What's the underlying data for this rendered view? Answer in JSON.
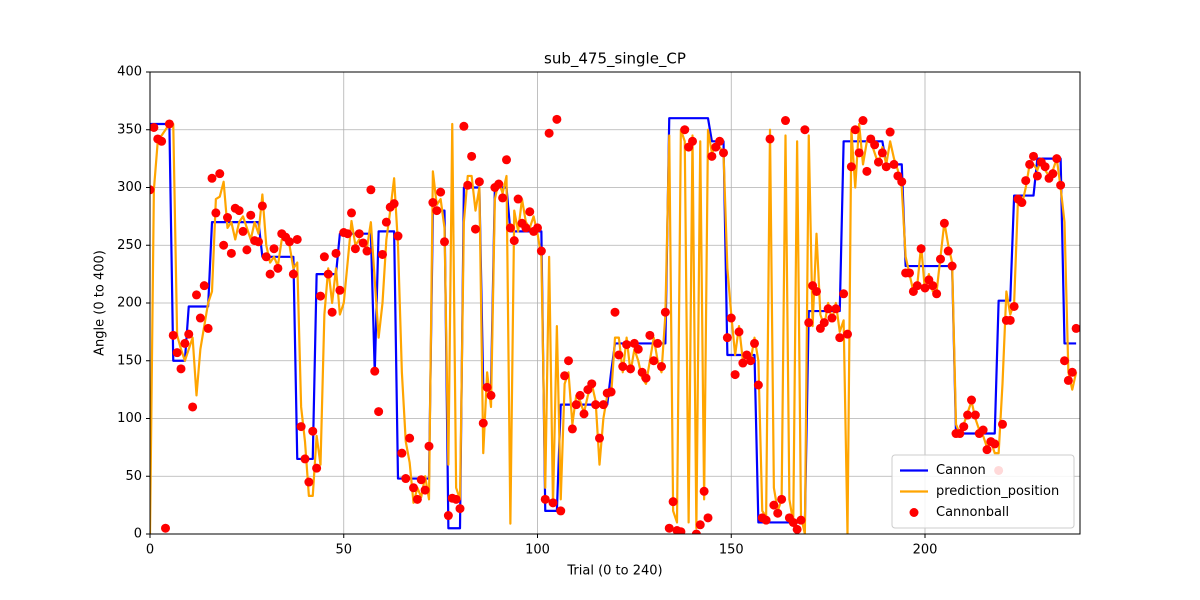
{
  "chart_data": {
    "type": "line",
    "title": "sub_475_single_CP",
    "x_label": "Trial (0 to 240)",
    "y_label": "Angle (0 to 400)",
    "xlim": [
      0,
      240
    ],
    "ylim": [
      0,
      400
    ],
    "xticks": [
      0,
      50,
      100,
      150,
      200
    ],
    "yticks": [
      0,
      50,
      100,
      150,
      200,
      250,
      300,
      350,
      400
    ],
    "grid": true,
    "legend": "lower right",
    "x": [
      0,
      1,
      2,
      3,
      4,
      5,
      6,
      7,
      8,
      9,
      10,
      11,
      12,
      13,
      14,
      15,
      16,
      17,
      18,
      19,
      20,
      21,
      22,
      23,
      24,
      25,
      26,
      27,
      28,
      29,
      30,
      31,
      32,
      33,
      34,
      35,
      36,
      37,
      38,
      39,
      40,
      41,
      42,
      43,
      44,
      45,
      46,
      47,
      48,
      49,
      50,
      51,
      52,
      53,
      54,
      55,
      56,
      57,
      58,
      59,
      60,
      61,
      62,
      63,
      64,
      65,
      66,
      67,
      68,
      69,
      70,
      71,
      72,
      73,
      74,
      75,
      76,
      77,
      78,
      79,
      80,
      81,
      82,
      83,
      84,
      85,
      86,
      87,
      88,
      89,
      90,
      91,
      92,
      93,
      94,
      95,
      96,
      97,
      98,
      99,
      100,
      101,
      102,
      103,
      104,
      105,
      106,
      107,
      108,
      109,
      110,
      111,
      112,
      113,
      114,
      115,
      116,
      117,
      118,
      119,
      120,
      121,
      122,
      123,
      124,
      125,
      126,
      127,
      128,
      129,
      130,
      131,
      132,
      133,
      134,
      135,
      136,
      137,
      138,
      139,
      140,
      141,
      142,
      143,
      144,
      145,
      146,
      147,
      148,
      149,
      150,
      151,
      152,
      153,
      154,
      155,
      156,
      157,
      158,
      159,
      160,
      161,
      162,
      163,
      164,
      165,
      166,
      167,
      168,
      169,
      170,
      171,
      172,
      173,
      174,
      175,
      176,
      177,
      178,
      179,
      180,
      181,
      182,
      183,
      184,
      185,
      186,
      187,
      188,
      189,
      190,
      191,
      192,
      193,
      194,
      195,
      196,
      197,
      198,
      199,
      200,
      201,
      202,
      203,
      204,
      205,
      206,
      207,
      208,
      209,
      210,
      211,
      212,
      213,
      214,
      215,
      216,
      217,
      218,
      219,
      220,
      221,
      222,
      223,
      224,
      225,
      226,
      227,
      228,
      229,
      230,
      231,
      232,
      233,
      234,
      235,
      236,
      237,
      238,
      239
    ],
    "series": [
      {
        "name": "Cannon",
        "type": "line",
        "color": "#0000ff",
        "values": [
          355,
          355,
          355,
          355,
          355,
          355,
          150,
          150,
          150,
          150,
          197,
          197,
          197,
          197,
          197,
          197,
          270,
          270,
          270,
          270,
          270,
          270,
          270,
          270,
          270,
          270,
          270,
          270,
          270,
          240,
          240,
          240,
          240,
          240,
          240,
          240,
          240,
          240,
          65,
          65,
          65,
          65,
          65,
          225,
          225,
          225,
          225,
          225,
          225,
          260,
          260,
          260,
          260,
          260,
          260,
          260,
          260,
          260,
          140,
          262,
          262,
          262,
          262,
          262,
          48,
          48,
          48,
          48,
          48,
          48,
          48,
          48,
          48,
          280,
          280,
          280,
          280,
          5,
          5,
          5,
          5,
          300,
          300,
          300,
          300,
          300,
          127,
          127,
          127,
          300,
          300,
          300,
          300,
          262,
          262,
          262,
          262,
          262,
          262,
          262,
          262,
          262,
          20,
          20,
          20,
          20,
          112,
          112,
          112,
          112,
          112,
          112,
          112,
          112,
          112,
          112,
          112,
          112,
          112,
          140,
          165,
          165,
          165,
          165,
          165,
          165,
          165,
          165,
          165,
          165,
          165,
          165,
          165,
          165,
          360,
          360,
          360,
          360,
          360,
          360,
          360,
          360,
          360,
          360,
          360,
          340,
          340,
          340,
          340,
          155,
          155,
          155,
          155,
          155,
          155,
          155,
          155,
          10,
          10,
          10,
          10,
          10,
          10,
          10,
          10,
          10,
          10,
          10,
          10,
          10,
          193,
          193,
          193,
          193,
          193,
          193,
          193,
          193,
          193,
          340,
          340,
          340,
          340,
          340,
          340,
          340,
          340,
          340,
          340,
          340,
          320,
          320,
          320,
          320,
          320,
          232,
          232,
          232,
          232,
          232,
          232,
          232,
          232,
          232,
          232,
          232,
          232,
          232,
          87,
          87,
          87,
          87,
          87,
          87,
          87,
          87,
          87,
          87,
          87,
          202,
          202,
          202,
          202,
          293,
          293,
          293,
          293,
          293,
          293,
          325,
          325,
          325,
          325,
          325,
          325,
          325,
          165,
          165,
          165,
          165
        ]
      },
      {
        "name": "prediction_position",
        "type": "line",
        "color": "#ffa500",
        "values": [
          0,
          298,
          340,
          345,
          350,
          355,
          355,
          172,
          160,
          150,
          160,
          170,
          120,
          160,
          180,
          200,
          210,
          290,
          292,
          305,
          265,
          270,
          255,
          270,
          275,
          265,
          255,
          270,
          260,
          294,
          250,
          235,
          240,
          232,
          255,
          255,
          250,
          230,
          235,
          110,
          80,
          33,
          33,
          85,
          60,
          190,
          230,
          200,
          230,
          190,
          200,
          235,
          271,
          250,
          255,
          250,
          248,
          270,
          220,
          170,
          200,
          255,
          280,
          308,
          250,
          140,
          80,
          62,
          27,
          40,
          32,
          50,
          30,
          314,
          285,
          290,
          265,
          60,
          355,
          40,
          30,
          270,
          310,
          310,
          280,
          300,
          70,
          140,
          110,
          290,
          305,
          295,
          310,
          9,
          280,
          262,
          290,
          270,
          265,
          275,
          260,
          240,
          40,
          240,
          25,
          180,
          30,
          130,
          140,
          95,
          120,
          115,
          105,
          120,
          130,
          115,
          60,
          100,
          120,
          120,
          170,
          170,
          140,
          170,
          140,
          160,
          150,
          135,
          130,
          150,
          170,
          150,
          140,
          190,
          345,
          20,
          10,
          350,
          340,
          10,
          345,
          5,
          340,
          30,
          350,
          330,
          335,
          335,
          330,
          230,
          190,
          155,
          180,
          150,
          155,
          150,
          170,
          150,
          20,
          15,
          350,
          40,
          20,
          30,
          345,
          30,
          10,
          340,
          15,
          0,
          345,
          180,
          260,
          190,
          180,
          200,
          185,
          200,
          175,
          185,
          0,
          350,
          300,
          355,
          320,
          340,
          340,
          330,
          320,
          335,
          320,
          340,
          325,
          315,
          300,
          240,
          225,
          210,
          215,
          250,
          210,
          225,
          210,
          210,
          240,
          270,
          250,
          235,
          95,
          87,
          95,
          105,
          115,
          100,
          90,
          85,
          75,
          80,
          70,
          70,
          130,
          210,
          190,
          200,
          290,
          285,
          300,
          320,
          320,
          315,
          325,
          315,
          310,
          315,
          325,
          300,
          270,
          140,
          125,
          140
        ]
      },
      {
        "name": "Cannonball",
        "type": "scatter",
        "color": "#ff0000",
        "values": [
          298,
          352,
          342,
          340,
          5,
          355,
          172,
          157,
          143,
          165,
          173,
          110,
          207,
          187,
          215,
          178,
          308,
          278,
          312,
          250,
          274,
          243,
          282,
          280,
          262,
          246,
          276,
          254,
          253,
          284,
          240,
          225,
          247,
          230,
          260,
          257,
          253,
          225,
          255,
          93,
          65,
          45,
          89,
          57,
          206,
          240,
          225,
          192,
          243,
          211,
          261,
          260,
          278,
          247,
          260,
          252,
          245,
          298,
          141,
          106,
          242,
          270,
          283,
          286,
          258,
          70,
          48,
          83,
          40,
          30,
          47,
          38,
          76,
          287,
          280,
          296,
          253,
          16,
          31,
          30,
          22,
          353,
          302,
          327,
          264,
          305,
          96,
          127,
          120,
          300,
          303,
          291,
          324,
          265,
          254,
          290,
          269,
          265,
          279,
          262,
          265,
          245,
          30,
          347,
          27,
          359,
          20,
          137,
          150,
          91,
          112,
          120,
          104,
          125,
          130,
          112,
          83,
          112,
          122,
          123,
          192,
          155,
          145,
          164,
          143,
          165,
          160,
          140,
          135,
          172,
          150,
          165,
          145,
          192,
          5,
          28,
          3,
          2,
          350,
          335,
          340,
          0,
          8,
          37,
          14,
          327,
          335,
          340,
          330,
          170,
          187,
          138,
          175,
          148,
          155,
          150,
          165,
          129,
          14,
          12,
          342,
          25,
          18,
          30,
          358,
          14,
          10,
          4,
          12,
          350,
          183,
          215,
          210,
          178,
          183,
          195,
          187,
          195,
          170,
          208,
          173,
          318,
          350,
          330,
          358,
          314,
          342,
          337,
          322,
          330,
          318,
          348,
          320,
          310,
          305,
          226,
          226,
          210,
          215,
          247,
          213,
          220,
          215,
          208,
          238,
          269,
          245,
          232,
          87,
          87,
          93,
          103,
          116,
          103,
          87,
          90,
          73,
          80,
          78,
          55,
          95,
          185,
          185,
          197,
          290,
          287,
          306,
          320,
          327,
          310,
          322,
          318,
          308,
          312,
          325,
          302,
          150,
          133,
          140,
          178
        ]
      }
    ]
  }
}
